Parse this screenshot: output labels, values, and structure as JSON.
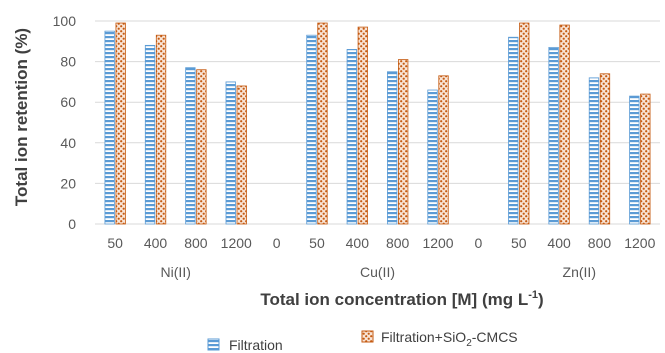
{
  "chart_data": {
    "type": "bar",
    "ylabel": "Total ion retention (%)",
    "xlabel": {
      "main": "Total ion concentration [M] (mg L",
      "sup": "-1",
      "end": ")"
    },
    "ylim": [
      0,
      100
    ],
    "yticks": [
      0,
      20,
      40,
      60,
      80,
      100
    ],
    "grid": true,
    "legend_position": "bottom",
    "categories": [
      "50",
      "400",
      "800",
      "1200",
      "0",
      "50",
      "400",
      "800",
      "1200",
      "0",
      "50",
      "400",
      "800",
      "1200"
    ],
    "groups": [
      {
        "label": "Ni(II)",
        "span": [
          0,
          3
        ]
      },
      {
        "label": "Cu(II)",
        "span": [
          5,
          8
        ]
      },
      {
        "label": "Zn(II)",
        "span": [
          10,
          13
        ]
      }
    ],
    "series": [
      {
        "name": "Filtration",
        "color": "#5b9bd5",
        "pattern": "horizontal-stripes",
        "values": [
          95,
          88,
          77,
          70,
          null,
          93,
          86,
          75,
          66,
          null,
          92,
          87,
          72,
          63
        ]
      },
      {
        "name_parts": [
          "Filtration+SiO",
          "2",
          "-CMCS"
        ],
        "color": "#c55a11",
        "pattern": "dots",
        "values": [
          99,
          93,
          76,
          68,
          null,
          99,
          97,
          81,
          73,
          null,
          99,
          98,
          74,
          64
        ]
      }
    ]
  }
}
